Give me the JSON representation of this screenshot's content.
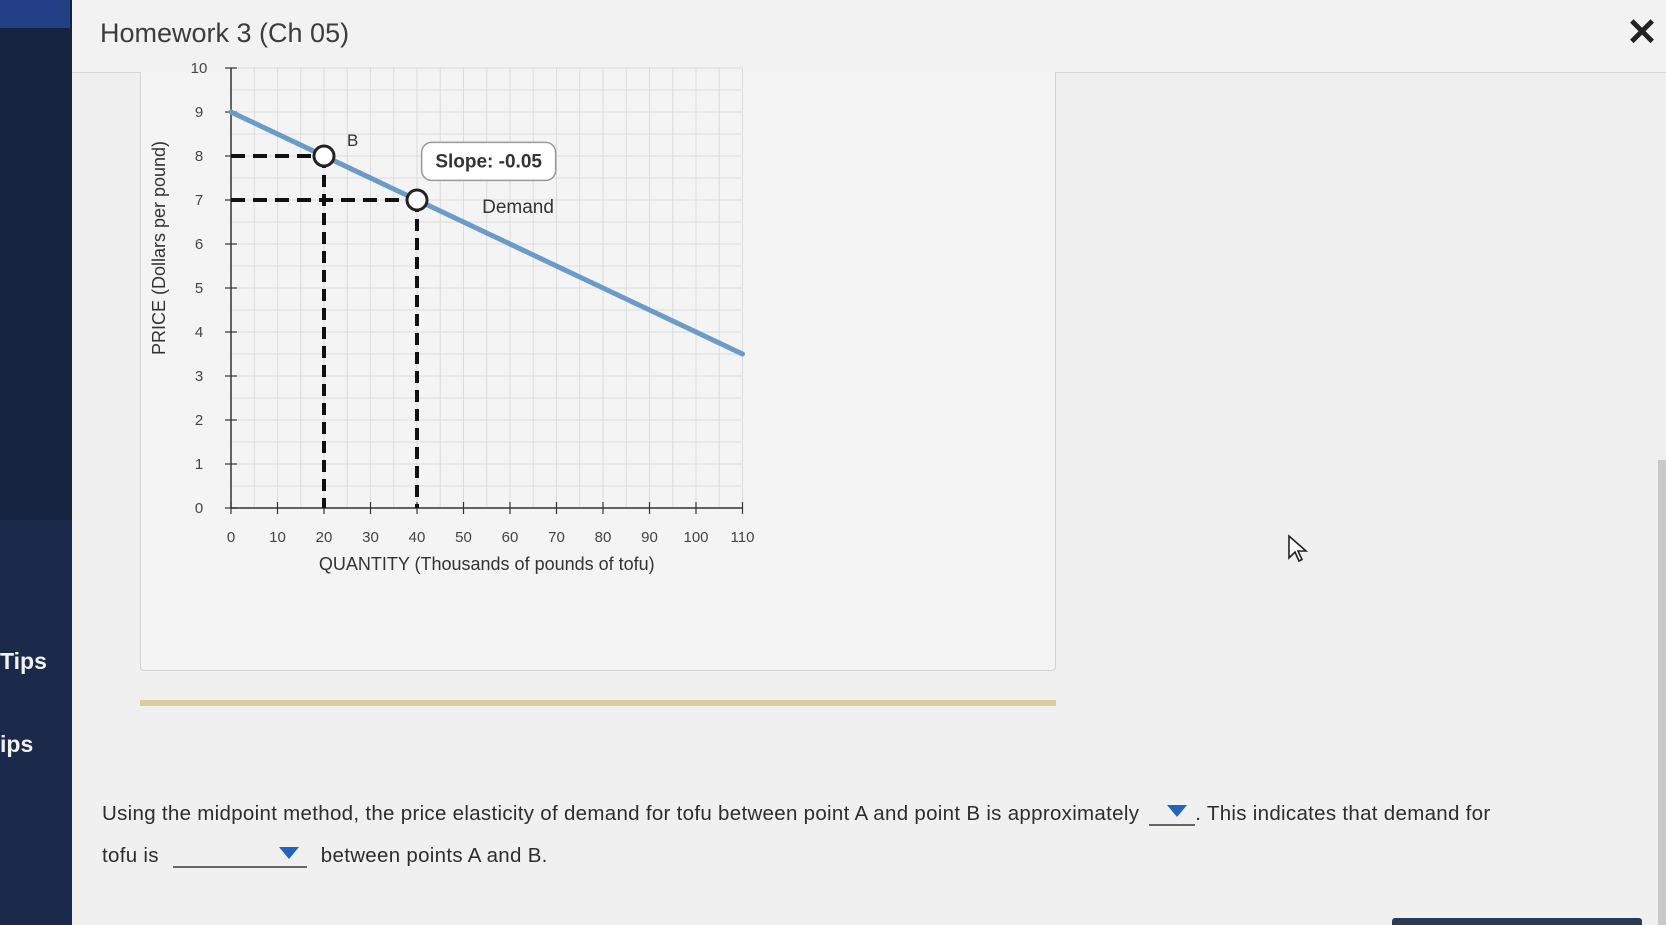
{
  "window": {
    "title": "Homework 3 (Ch 05)"
  },
  "sidebar": {
    "tips": [
      "Tips",
      "ips"
    ]
  },
  "chart_data": {
    "type": "line",
    "xlabel": "QUANTITY (Thousands of pounds of tofu)",
    "ylabel": "PRICE (Dollars per pound)",
    "xlim": [
      0,
      110
    ],
    "ylim": [
      0,
      10
    ],
    "x_ticks": [
      "0",
      "10",
      "20",
      "30",
      "40",
      "50",
      "60",
      "70",
      "80",
      "90",
      "100",
      "110"
    ],
    "y_ticks": [
      "0",
      "1",
      "2",
      "3",
      "4",
      "5",
      "6",
      "7",
      "8",
      "9",
      "10"
    ],
    "series": [
      {
        "name": "Demand",
        "x": [
          0,
          110
        ],
        "y": [
          9,
          3.5
        ],
        "color": "#6b9bc8"
      }
    ],
    "points": [
      {
        "label": "B",
        "x": 20,
        "y": 8
      },
      {
        "label": "",
        "x": 40,
        "y": 7
      }
    ],
    "tooltip": "Slope: -0.05",
    "grid": true
  },
  "question": {
    "line1_a": "Using the midpoint method, the price elasticity of demand for tofu between point A and point B is approximately",
    "line1_b": ". This indicates that demand for",
    "line2_a": "tofu is",
    "line2_b": "between points A and B.",
    "dropdown1_value": "",
    "dropdown2_value": ""
  },
  "colors": {
    "accent": "#1e64c0",
    "demand": "#6b9bc8"
  }
}
